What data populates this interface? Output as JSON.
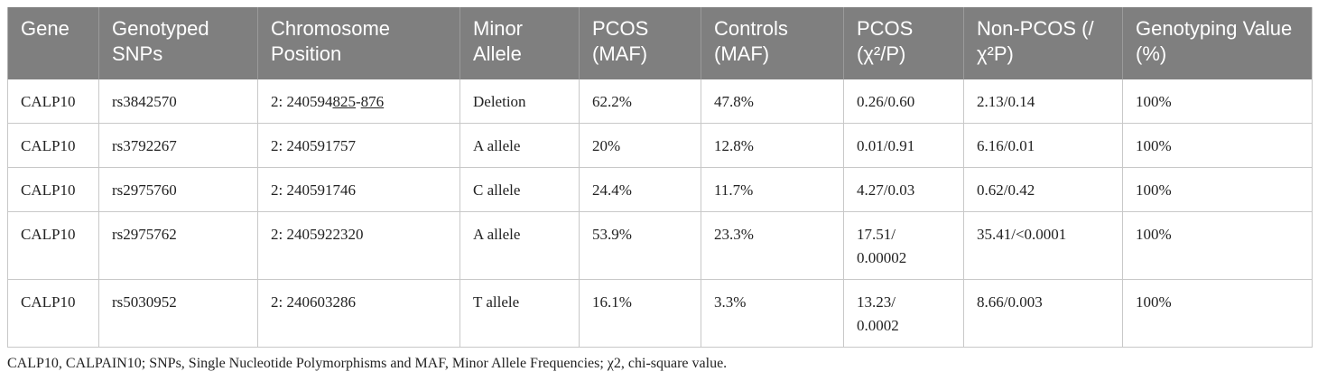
{
  "table": {
    "headers": [
      "Gene",
      "Genotyped SNPs",
      "Chromosome Position",
      "Minor Allele",
      "PCOS (MAF)",
      "Controls (MAF)",
      "PCOS (χ²/P)",
      "Non-PCOS (/χ²P)",
      "Genotyping Value (%)"
    ],
    "rows": [
      {
        "gene": "CALP10",
        "snp": "rs3842570",
        "position_prefix": "2: 240594",
        "position_u1": "825",
        "position_sep": "-",
        "position_u2": "876",
        "allele": "Deletion",
        "pcos_maf": "62.2%",
        "controls_maf": "47.8%",
        "pcos_chi_line1": "0.26/0.60",
        "pcos_chi_line2": "",
        "nonpcos": "2.13/0.14",
        "value": "100%"
      },
      {
        "gene": "CALP10",
        "snp": "rs3792267",
        "position": "2: 240591757",
        "allele": "A allele",
        "pcos_maf": "20%",
        "controls_maf": "12.8%",
        "pcos_chi_line1": "0.01/0.91",
        "pcos_chi_line2": "",
        "nonpcos": "6.16/0.01",
        "value": "100%"
      },
      {
        "gene": "CALP10",
        "snp": "rs2975760",
        "position": "2: 240591746",
        "allele": "C allele",
        "pcos_maf": "24.4%",
        "controls_maf": "11.7%",
        "pcos_chi_line1": "4.27/0.03",
        "pcos_chi_line2": "",
        "nonpcos": "0.62/0.42",
        "value": "100%"
      },
      {
        "gene": "CALP10",
        "snp": "rs2975762",
        "position": "2: 2405922320",
        "allele": "A allele",
        "pcos_maf": "53.9%",
        "controls_maf": "23.3%",
        "pcos_chi_line1": "17.51/",
        "pcos_chi_line2": "0.00002",
        "nonpcos": "35.41/<0.0001",
        "value": "100%"
      },
      {
        "gene": "CALP10",
        "snp": "rs5030952",
        "position": "2: 240603286",
        "allele": "T allele",
        "pcos_maf": "16.1%",
        "controls_maf": "3.3%",
        "pcos_chi_line1": "13.23/",
        "pcos_chi_line2": "0.0002",
        "nonpcos": "8.66/0.003",
        "value": "100%"
      }
    ]
  },
  "footnote": "CALP10, CALPAIN10; SNPs, Single Nucleotide Polymorphisms and MAF, Minor Allele Frequencies; χ2, chi-square value.",
  "colors": {
    "header_bg": "#7f7f7f",
    "header_text": "#ffffff",
    "border": "#c8c8c8"
  }
}
